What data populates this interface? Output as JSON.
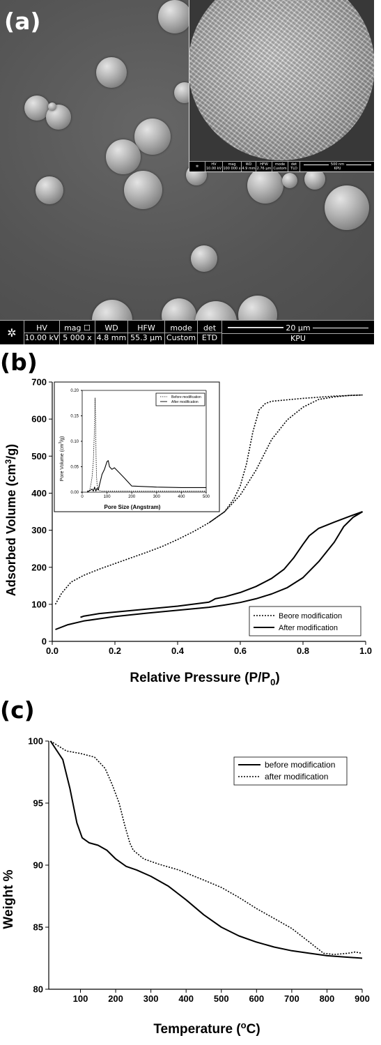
{
  "panel_labels": {
    "a": "(a)",
    "b": "(b)",
    "c": "(c)"
  },
  "sem_main": {
    "headers": [
      "HV",
      "mag",
      "WD",
      "HFW",
      "mode",
      "det"
    ],
    "values": [
      "10.00 kV",
      "5 000 x",
      "4.8 mm",
      "55.3 µm",
      "Custom",
      "ETD"
    ],
    "scalebar": "20 µm",
    "institution": "KPU"
  },
  "sem_inset": {
    "headers": [
      "HV",
      "mag",
      "WD",
      "HFW",
      "mode",
      "det"
    ],
    "values": [
      "10.00 kV",
      "100 000 x",
      "4.9 mm",
      "2.76 µm",
      "Custom",
      "TLD"
    ],
    "scalebar": "500 nm",
    "institution": "KPU"
  },
  "chart_data": [
    {
      "type": "line",
      "panel": "b",
      "xlabel": "Relative Pressure (P/P0)",
      "ylabel": "Adsorbed Volume (cm3/g)",
      "xlim": [
        0.0,
        1.0
      ],
      "ylim": [
        0,
        700
      ],
      "xticks": [
        "0.0",
        "0.2",
        "0.4",
        "0.6",
        "0.8",
        "1.0"
      ],
      "yticks": [
        "0",
        "100",
        "200",
        "300",
        "400",
        "500",
        "600",
        "700"
      ],
      "grid": false,
      "legend_position": "bottom-right",
      "series": [
        {
          "name": "Beore modification",
          "style": "dotted",
          "branch": "adsorption",
          "x": [
            0.01,
            0.03,
            0.06,
            0.1,
            0.15,
            0.2,
            0.25,
            0.3,
            0.35,
            0.4,
            0.45,
            0.5,
            0.55,
            0.6,
            0.65,
            0.7,
            0.75,
            0.8,
            0.85,
            0.9,
            0.95,
            0.99
          ],
          "y": [
            100,
            130,
            160,
            178,
            195,
            210,
            225,
            240,
            256,
            275,
            296,
            320,
            350,
            395,
            462,
            545,
            598,
            632,
            653,
            660,
            664,
            665
          ]
        },
        {
          "name": "Beore modification",
          "style": "dotted",
          "branch": "desorption",
          "x": [
            0.99,
            0.9,
            0.8,
            0.75,
            0.7,
            0.68,
            0.66,
            0.64,
            0.62,
            0.6,
            0.58,
            0.55,
            0.5
          ],
          "y": [
            665,
            662,
            656,
            652,
            648,
            642,
            625,
            565,
            480,
            420,
            385,
            350,
            320
          ]
        },
        {
          "name": "After modification",
          "style": "solid",
          "branch": "adsorption",
          "x": [
            0.01,
            0.05,
            0.1,
            0.2,
            0.3,
            0.4,
            0.5,
            0.55,
            0.6,
            0.65,
            0.7,
            0.75,
            0.8,
            0.85,
            0.9,
            0.93,
            0.96,
            0.99
          ],
          "y": [
            32,
            45,
            55,
            67,
            76,
            84,
            92,
            98,
            105,
            115,
            128,
            145,
            172,
            215,
            268,
            310,
            335,
            350
          ]
        },
        {
          "name": "After modification",
          "style": "solid",
          "branch": "desorption",
          "x": [
            0.99,
            0.95,
            0.9,
            0.85,
            0.82,
            0.8,
            0.77,
            0.74,
            0.7,
            0.65,
            0.6,
            0.55,
            0.52,
            0.51,
            0.5,
            0.4,
            0.3,
            0.2,
            0.15,
            0.1,
            0.09
          ],
          "y": [
            350,
            338,
            322,
            305,
            285,
            262,
            225,
            195,
            170,
            148,
            132,
            120,
            115,
            110,
            106,
            95,
            87,
            79,
            75,
            68,
            65
          ]
        }
      ]
    },
    {
      "type": "line",
      "panel": "b-inset",
      "xlabel": "Pore Size (Angstram)",
      "ylabel": "Pore Volume (cm3/g)",
      "xlim": [
        0,
        500
      ],
      "ylim": [
        0,
        0.2
      ],
      "xticks": [
        "0",
        "100",
        "200",
        "300",
        "400",
        "500"
      ],
      "yticks": [
        "0.00",
        "0.05",
        "0.10",
        "0.15",
        "0.20"
      ],
      "legend_position": "top-right",
      "series": [
        {
          "name": "Before modification",
          "style": "dotted",
          "x": [
            20,
            30,
            35,
            40,
            45,
            50,
            52,
            54,
            56,
            58,
            60,
            65,
            70,
            80,
            100,
            200,
            300,
            400,
            500
          ],
          "y": [
            0.002,
            0.004,
            0.015,
            0.03,
            0.06,
            0.13,
            0.185,
            0.15,
            0.07,
            0.03,
            0.015,
            0.006,
            0.003,
            0.002,
            0.002,
            0.002,
            0.002,
            0.002,
            0.002
          ]
        },
        {
          "name": "After modification",
          "style": "solid",
          "x": [
            20,
            30,
            40,
            45,
            50,
            55,
            60,
            65,
            70,
            75,
            80,
            90,
            100,
            105,
            110,
            120,
            130,
            150,
            170,
            200,
            300,
            400,
            500
          ],
          "y": [
            0.0,
            0.003,
            0.006,
            0.002,
            0.01,
            0.002,
            0.008,
            0.004,
            0.015,
            0.025,
            0.035,
            0.045,
            0.06,
            0.062,
            0.05,
            0.045,
            0.048,
            0.038,
            0.028,
            0.012,
            0.01,
            0.009,
            0.009
          ]
        }
      ]
    },
    {
      "type": "line",
      "panel": "c",
      "xlabel": "Temperature (oC)",
      "ylabel": "Weight %",
      "xlim": [
        10,
        900
      ],
      "ylim": [
        80,
        100
      ],
      "xticks": [
        "100",
        "200",
        "300",
        "400",
        "500",
        "600",
        "700",
        "800",
        "900"
      ],
      "yticks": [
        "80",
        "85",
        "90",
        "95",
        "100"
      ],
      "grid": false,
      "legend_position": "top-right",
      "series": [
        {
          "name": "before modification",
          "style": "solid",
          "x": [
            15,
            50,
            70,
            90,
            105,
            125,
            150,
            175,
            200,
            230,
            260,
            300,
            350,
            400,
            450,
            500,
            550,
            600,
            650,
            700,
            750,
            800,
            850,
            900
          ],
          "y": [
            100,
            98.5,
            96.2,
            93.4,
            92.2,
            91.8,
            91.6,
            91.2,
            90.5,
            89.9,
            89.6,
            89.1,
            88.3,
            87.2,
            86.0,
            85.0,
            84.3,
            83.8,
            83.4,
            83.1,
            82.9,
            82.7,
            82.6,
            82.5
          ]
        },
        {
          "name": "after modification",
          "style": "dotted",
          "x": [
            15,
            60,
            100,
            140,
            170,
            190,
            210,
            225,
            240,
            250,
            280,
            320,
            380,
            450,
            500,
            550,
            600,
            650,
            700,
            750,
            790,
            820,
            860,
            880,
            900
          ],
          "y": [
            100,
            99.2,
            99.0,
            98.7,
            97.8,
            96.5,
            95.0,
            93.3,
            91.8,
            91.2,
            90.5,
            90.1,
            89.6,
            88.8,
            88.2,
            87.4,
            86.5,
            85.7,
            84.9,
            83.8,
            82.9,
            82.8,
            82.9,
            83.0,
            82.9
          ]
        }
      ]
    }
  ]
}
